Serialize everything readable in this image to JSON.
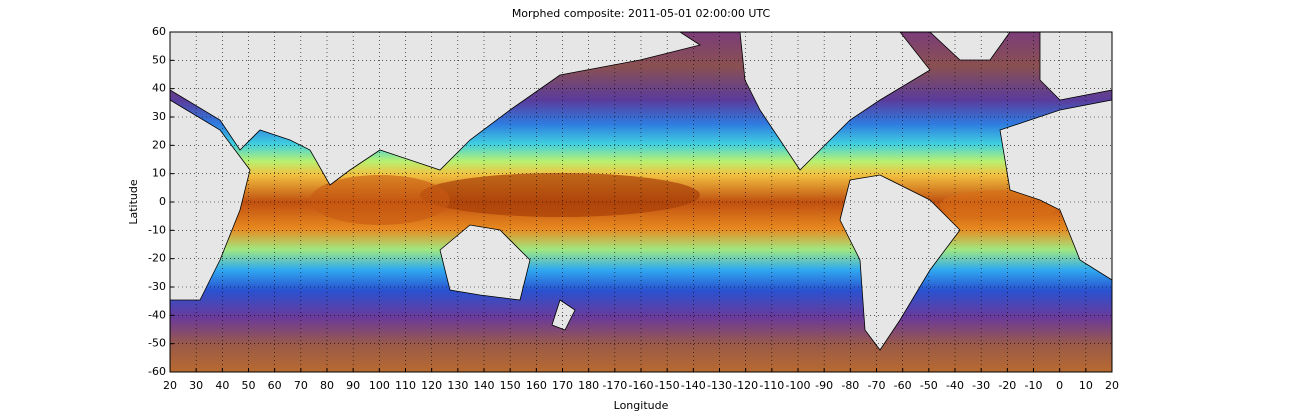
{
  "map": {
    "title": "Morphed composite: 2011-05-01 02:00:00 UTC",
    "x_label": "Longitude",
    "y_label": "Latitude",
    "lat_labels": [
      60,
      50,
      40,
      30,
      20,
      10,
      0,
      -10,
      -20,
      -30,
      -40,
      -50,
      -60
    ],
    "lon_labels": [
      20,
      30,
      40,
      50,
      60,
      70,
      80,
      90,
      100,
      110,
      120,
      130,
      140,
      150,
      160,
      170,
      180,
      -170,
      -160,
      -150,
      -140,
      -130,
      -120,
      -110,
      -100,
      -90,
      -80,
      -70,
      -60,
      -50,
      -40,
      -30,
      -20,
      -10,
      0,
      10,
      20
    ]
  }
}
